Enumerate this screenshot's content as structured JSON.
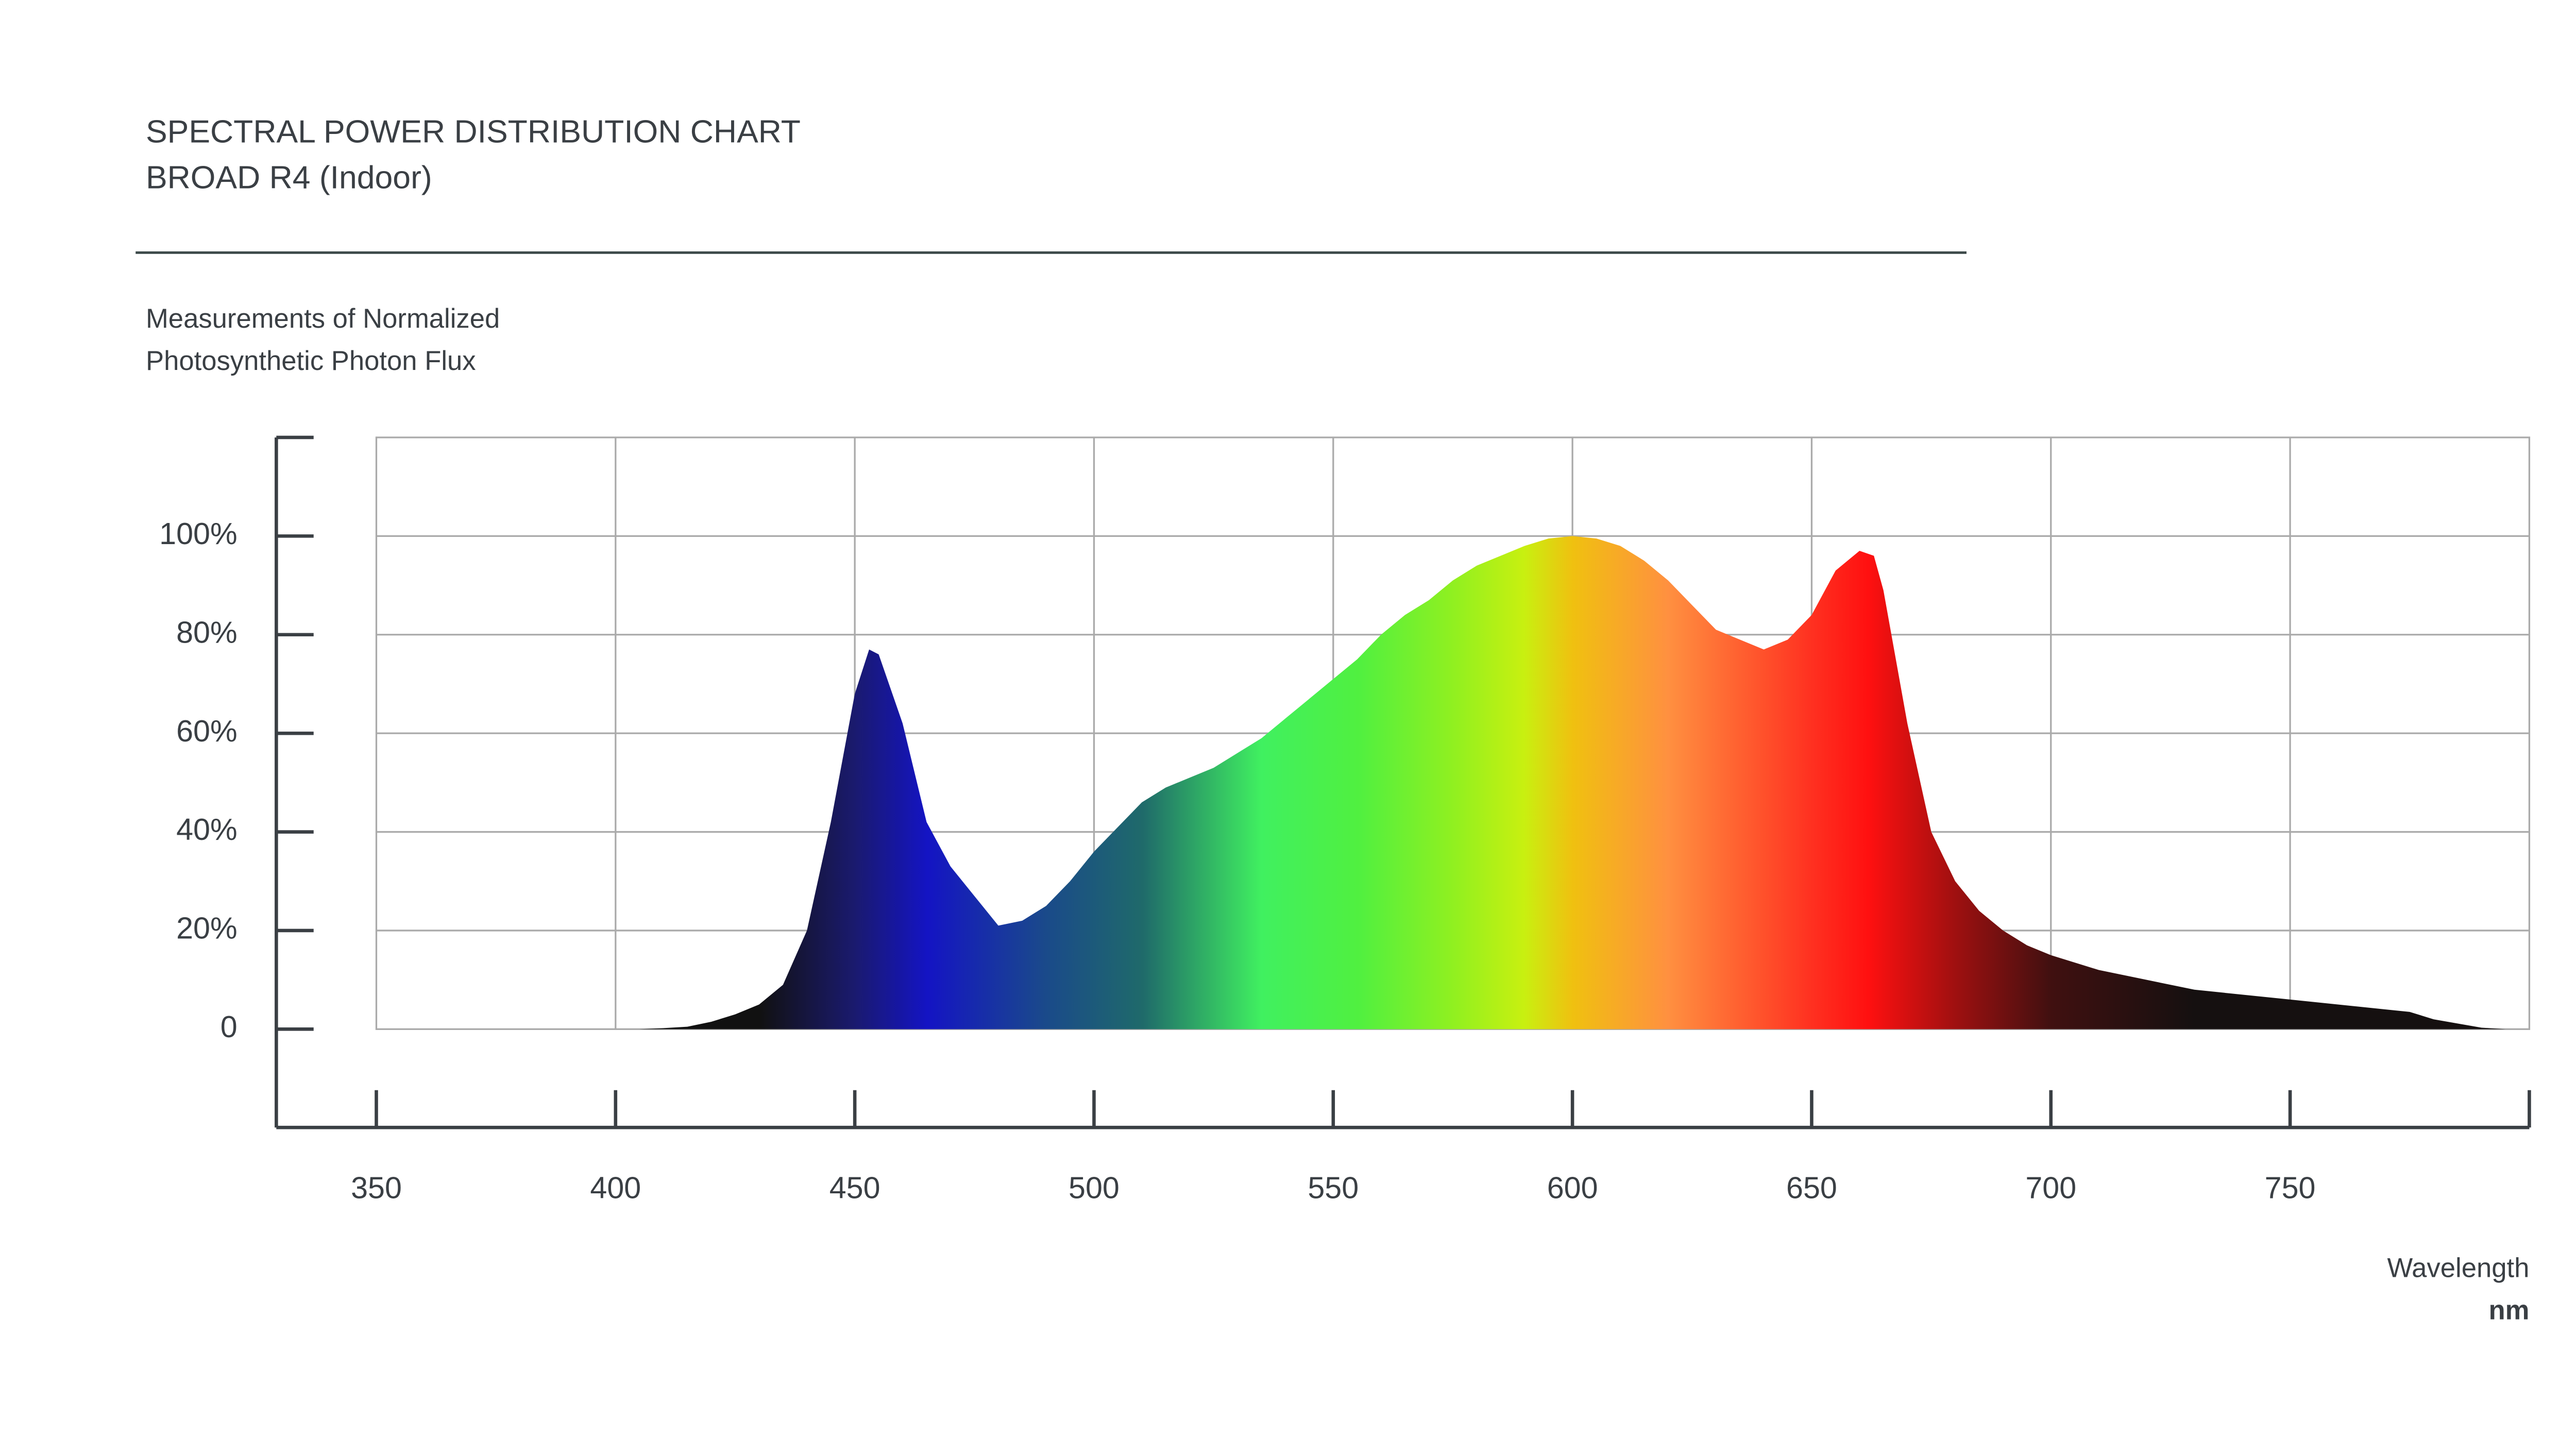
{
  "chart_data": {
    "type": "area",
    "title": "SPECTRAL POWER DISTRIBUTION CHART",
    "subtitle": "BROAD R4 (Indoor)",
    "y_label": [
      "Measurements of Normalized",
      "Photosynthetic Photon Flux"
    ],
    "x_label": "Wavelength",
    "x_unit": "nm",
    "x": [
      385,
      390,
      395,
      400,
      405,
      410,
      415,
      420,
      425,
      430,
      435,
      440,
      445,
      450,
      453,
      455,
      460,
      465,
      470,
      475,
      480,
      485,
      490,
      495,
      500,
      505,
      510,
      515,
      520,
      525,
      530,
      535,
      540,
      545,
      550,
      555,
      560,
      565,
      570,
      575,
      580,
      585,
      590,
      595,
      600,
      605,
      610,
      615,
      620,
      625,
      630,
      635,
      640,
      645,
      650,
      655,
      660,
      663,
      665,
      670,
      675,
      680,
      685,
      690,
      695,
      700,
      710,
      720,
      730,
      740,
      750,
      760,
      770,
      775,
      780,
      790,
      795
    ],
    "values": [
      0,
      0,
      0,
      0,
      0,
      0.2,
      0.5,
      1.5,
      3,
      5,
      9,
      20,
      42,
      68,
      77,
      76,
      62,
      42,
      33,
      27,
      21,
      22,
      25,
      30,
      36,
      41,
      46,
      49,
      51,
      53,
      56,
      59,
      63,
      67,
      71,
      75,
      80,
      84,
      87,
      91,
      94,
      96,
      98,
      99.5,
      100,
      99.5,
      98,
      95,
      91,
      86,
      81,
      79,
      77,
      79,
      84,
      93,
      97,
      96,
      89,
      62,
      40,
      30,
      24,
      20,
      17,
      15,
      12,
      10,
      8,
      7,
      6,
      5,
      4,
      3.5,
      2,
      0.3,
      0
    ],
    "xlim": [
      350,
      800
    ],
    "ylim": [
      -20,
      120
    ],
    "xticks": [
      350,
      400,
      450,
      500,
      550,
      600,
      650,
      700,
      750
    ],
    "yticks": [
      0,
      {
        "value": 20,
        "label": "20%"
      },
      {
        "value": 40,
        "label": "40%"
      },
      {
        "value": 60,
        "label": "60%"
      },
      {
        "value": 80,
        "label": "80%"
      },
      {
        "value": 100,
        "label": "100%"
      }
    ],
    "grid": true
  }
}
